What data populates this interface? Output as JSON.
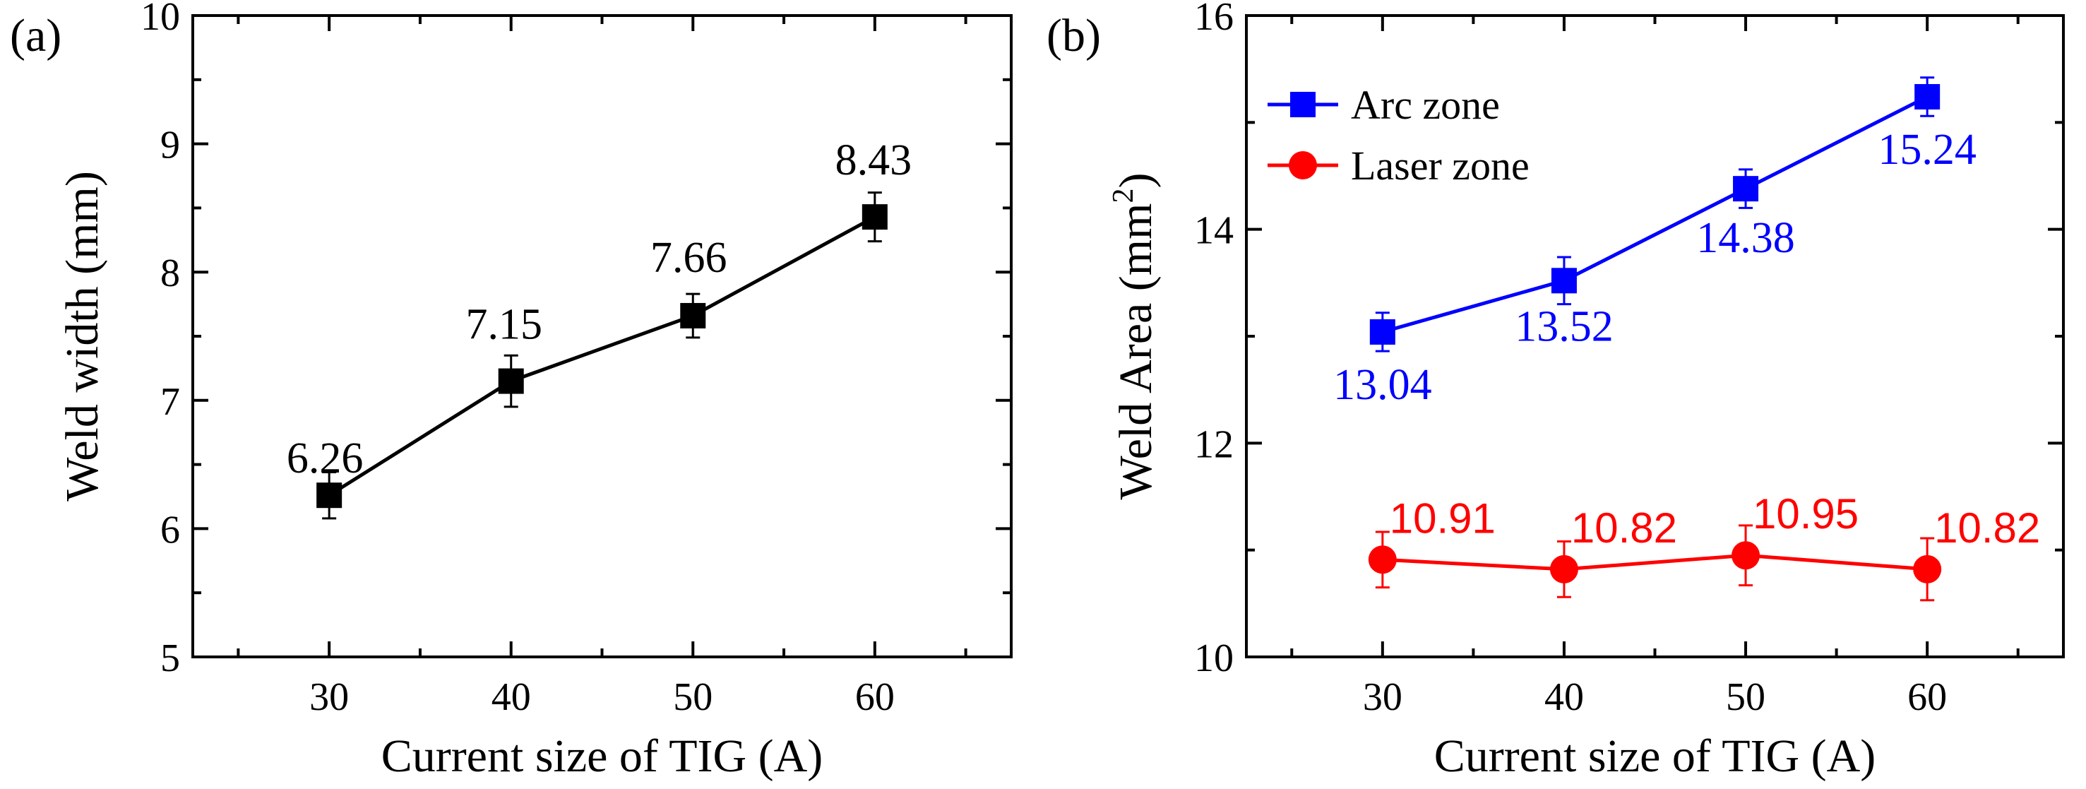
{
  "chart_data": [
    {
      "panel_label": "(a)",
      "type": "line",
      "title": "",
      "xlabel": "Current size of TIG (A)",
      "ylabel": "Weld width (mm)",
      "xlim": [
        22.5,
        67.5
      ],
      "ylim": [
        5,
        10
      ],
      "x_ticks": [
        30,
        40,
        50,
        60
      ],
      "x_tick_labels": [
        "30",
        "40",
        "50",
        "60"
      ],
      "y_ticks": [
        5,
        6,
        7,
        8,
        9,
        10
      ],
      "y_tick_labels": [
        "5",
        "6",
        "7",
        "8",
        "9",
        "10"
      ],
      "grid": false,
      "legend": null,
      "series": [
        {
          "name": "Weld width",
          "color": "#000000",
          "marker": "square",
          "x": [
            30,
            40,
            50,
            60
          ],
          "values": [
            6.26,
            7.15,
            7.66,
            8.43
          ],
          "errors": [
            0.18,
            0.2,
            0.17,
            0.19
          ],
          "data_labels": [
            "6.26",
            "7.15",
            "7.66",
            "8.43"
          ]
        }
      ]
    },
    {
      "panel_label": "(b)",
      "type": "line",
      "title": "",
      "xlabel": "Current size of TIG (A)",
      "ylabel": "Weld Area (mm",
      "ylabel_superscript": "2",
      "ylabel_suffix": ")",
      "xlim": [
        22.5,
        67.5
      ],
      "ylim": [
        10,
        16
      ],
      "x_ticks": [
        30,
        40,
        50,
        60
      ],
      "x_tick_labels": [
        "30",
        "40",
        "50",
        "60"
      ],
      "y_ticks": [
        10,
        12,
        14,
        16
      ],
      "y_tick_labels": [
        "10",
        "12",
        "14",
        "16"
      ],
      "grid": false,
      "legend": "top-left",
      "series": [
        {
          "name": "Arc zone",
          "color": "#0000ff",
          "marker": "square",
          "x": [
            30,
            40,
            50,
            60
          ],
          "values": [
            13.04,
            13.52,
            14.38,
            15.24
          ],
          "errors": [
            0.18,
            0.22,
            0.18,
            0.18
          ],
          "data_labels": [
            "13.04",
            "13.52",
            "14.38",
            "15.24"
          ]
        },
        {
          "name": "Laser zone",
          "color": "#ff0000",
          "marker": "circle",
          "x": [
            30,
            40,
            50,
            60
          ],
          "values": [
            10.91,
            10.82,
            10.95,
            10.82
          ],
          "errors": [
            0.26,
            0.26,
            0.28,
            0.29
          ],
          "data_labels": [
            "10.91",
            "10.82",
            "10.95",
            "10.82"
          ]
        }
      ]
    }
  ]
}
